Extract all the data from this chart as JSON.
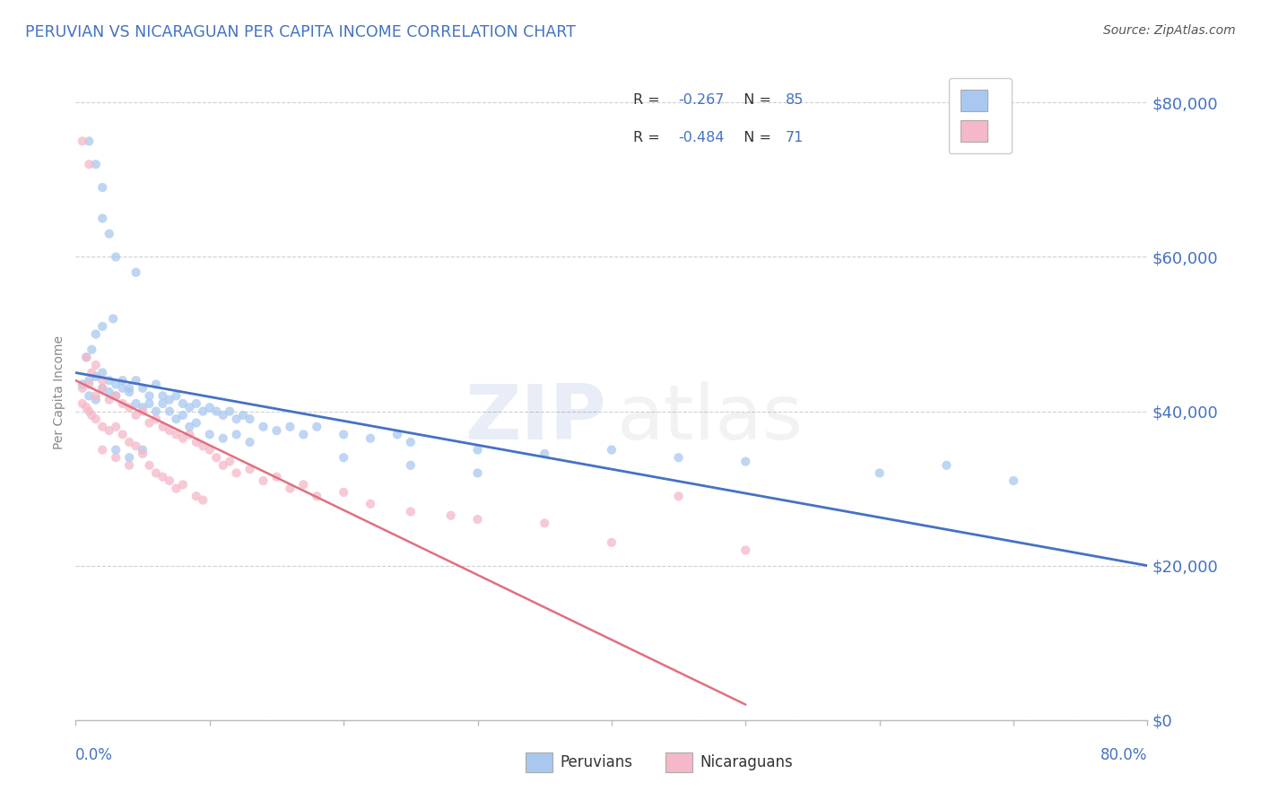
{
  "title": "PERUVIAN VS NICARAGUAN PER CAPITA INCOME CORRELATION CHART",
  "source": "Source: ZipAtlas.com",
  "ylabel": "Per Capita Income",
  "ytick_labels": [
    "$0",
    "$20,000",
    "$40,000",
    "$60,000",
    "$80,000"
  ],
  "ytick_values": [
    0,
    20000,
    40000,
    60000,
    80000
  ],
  "xmin": 0.0,
  "xmax": 80.0,
  "ymin": 0,
  "ymax": 85000,
  "blue_color": "#a8c8f0",
  "pink_color": "#f5b8c8",
  "trend_blue": "#4472c4",
  "trend_pink": "#e07080",
  "title_color": "#4472c4",
  "ytick_color": "#4472c4",
  "xtick_color": "#4472c4",
  "blue_scatter": [
    [
      1.0,
      75000
    ],
    [
      1.5,
      72000
    ],
    [
      2.0,
      69000
    ],
    [
      2.0,
      65000
    ],
    [
      2.5,
      63000
    ],
    [
      4.5,
      58000
    ],
    [
      3.0,
      60000
    ],
    [
      1.5,
      50000
    ],
    [
      2.0,
      51000
    ],
    [
      2.8,
      52000
    ],
    [
      1.2,
      48000
    ],
    [
      0.8,
      47000
    ],
    [
      1.0,
      44000
    ],
    [
      1.5,
      44500
    ],
    [
      2.0,
      45000
    ],
    [
      2.5,
      44000
    ],
    [
      3.0,
      43500
    ],
    [
      3.5,
      44000
    ],
    [
      4.0,
      43000
    ],
    [
      4.5,
      44000
    ],
    [
      5.0,
      43000
    ],
    [
      5.5,
      42000
    ],
    [
      6.0,
      43500
    ],
    [
      6.5,
      42000
    ],
    [
      7.0,
      41500
    ],
    [
      7.5,
      42000
    ],
    [
      8.0,
      41000
    ],
    [
      8.5,
      40500
    ],
    [
      9.0,
      41000
    ],
    [
      9.5,
      40000
    ],
    [
      10.0,
      40500
    ],
    [
      10.5,
      40000
    ],
    [
      11.0,
      39500
    ],
    [
      11.5,
      40000
    ],
    [
      12.0,
      39000
    ],
    [
      12.5,
      39500
    ],
    [
      13.0,
      39000
    ],
    [
      2.0,
      43000
    ],
    [
      2.5,
      42500
    ],
    [
      3.0,
      42000
    ],
    [
      3.5,
      43000
    ],
    [
      4.0,
      42500
    ],
    [
      1.0,
      42000
    ],
    [
      1.5,
      41500
    ],
    [
      0.5,
      43500
    ],
    [
      4.5,
      41000
    ],
    [
      5.0,
      40500
    ],
    [
      5.5,
      41000
    ],
    [
      6.0,
      40000
    ],
    [
      6.5,
      41000
    ],
    [
      7.0,
      40000
    ],
    [
      7.5,
      39000
    ],
    [
      8.0,
      39500
    ],
    [
      8.5,
      38000
    ],
    [
      9.0,
      38500
    ],
    [
      14.0,
      38000
    ],
    [
      15.0,
      37500
    ],
    [
      16.0,
      38000
    ],
    [
      17.0,
      37000
    ],
    [
      18.0,
      38000
    ],
    [
      20.0,
      37000
    ],
    [
      22.0,
      36500
    ],
    [
      24.0,
      37000
    ],
    [
      25.0,
      36000
    ],
    [
      10.0,
      37000
    ],
    [
      11.0,
      36500
    ],
    [
      12.0,
      37000
    ],
    [
      13.0,
      36000
    ],
    [
      30.0,
      35000
    ],
    [
      35.0,
      34500
    ],
    [
      40.0,
      35000
    ],
    [
      45.0,
      34000
    ],
    [
      50.0,
      33500
    ],
    [
      60.0,
      32000
    ],
    [
      65.0,
      33000
    ],
    [
      70.0,
      31000
    ],
    [
      3.0,
      35000
    ],
    [
      4.0,
      34000
    ],
    [
      5.0,
      35000
    ],
    [
      20.0,
      34000
    ],
    [
      25.0,
      33000
    ],
    [
      30.0,
      32000
    ]
  ],
  "pink_scatter": [
    [
      0.5,
      75000
    ],
    [
      1.0,
      72000
    ],
    [
      0.8,
      47000
    ],
    [
      1.2,
      45000
    ],
    [
      1.5,
      46000
    ],
    [
      2.0,
      44000
    ],
    [
      0.5,
      43000
    ],
    [
      1.0,
      43500
    ],
    [
      1.5,
      42000
    ],
    [
      2.0,
      43000
    ],
    [
      2.5,
      41500
    ],
    [
      3.0,
      42000
    ],
    [
      3.5,
      41000
    ],
    [
      4.0,
      40500
    ],
    [
      4.5,
      39500
    ],
    [
      5.0,
      40000
    ],
    [
      5.5,
      38500
    ],
    [
      6.0,
      39000
    ],
    [
      6.5,
      38000
    ],
    [
      7.0,
      37500
    ],
    [
      7.5,
      37000
    ],
    [
      8.0,
      36500
    ],
    [
      8.5,
      37000
    ],
    [
      9.0,
      36000
    ],
    [
      9.5,
      35500
    ],
    [
      10.0,
      35000
    ],
    [
      1.0,
      40000
    ],
    [
      1.5,
      39000
    ],
    [
      2.0,
      38000
    ],
    [
      2.5,
      37500
    ],
    [
      3.0,
      38000
    ],
    [
      0.5,
      41000
    ],
    [
      0.8,
      40500
    ],
    [
      1.2,
      39500
    ],
    [
      3.5,
      37000
    ],
    [
      4.0,
      36000
    ],
    [
      4.5,
      35500
    ],
    [
      5.0,
      34500
    ],
    [
      10.5,
      34000
    ],
    [
      11.0,
      33000
    ],
    [
      11.5,
      33500
    ],
    [
      12.0,
      32000
    ],
    [
      13.0,
      32500
    ],
    [
      14.0,
      31000
    ],
    [
      15.0,
      31500
    ],
    [
      16.0,
      30000
    ],
    [
      17.0,
      30500
    ],
    [
      18.0,
      29000
    ],
    [
      20.0,
      29500
    ],
    [
      22.0,
      28000
    ],
    [
      5.5,
      33000
    ],
    [
      6.0,
      32000
    ],
    [
      6.5,
      31500
    ],
    [
      7.0,
      31000
    ],
    [
      7.5,
      30000
    ],
    [
      8.0,
      30500
    ],
    [
      9.0,
      29000
    ],
    [
      9.5,
      28500
    ],
    [
      25.0,
      27000
    ],
    [
      28.0,
      26500
    ],
    [
      30.0,
      26000
    ],
    [
      35.0,
      25500
    ],
    [
      2.0,
      35000
    ],
    [
      3.0,
      34000
    ],
    [
      4.0,
      33000
    ],
    [
      40.0,
      23000
    ],
    [
      45.0,
      29000
    ],
    [
      50.0,
      22000
    ]
  ],
  "blue_trend_x": [
    0.0,
    80.0
  ],
  "blue_trend_y": [
    45000,
    20000
  ],
  "pink_trend_x": [
    0.0,
    50.0
  ],
  "pink_trend_y": [
    44000,
    2000
  ]
}
